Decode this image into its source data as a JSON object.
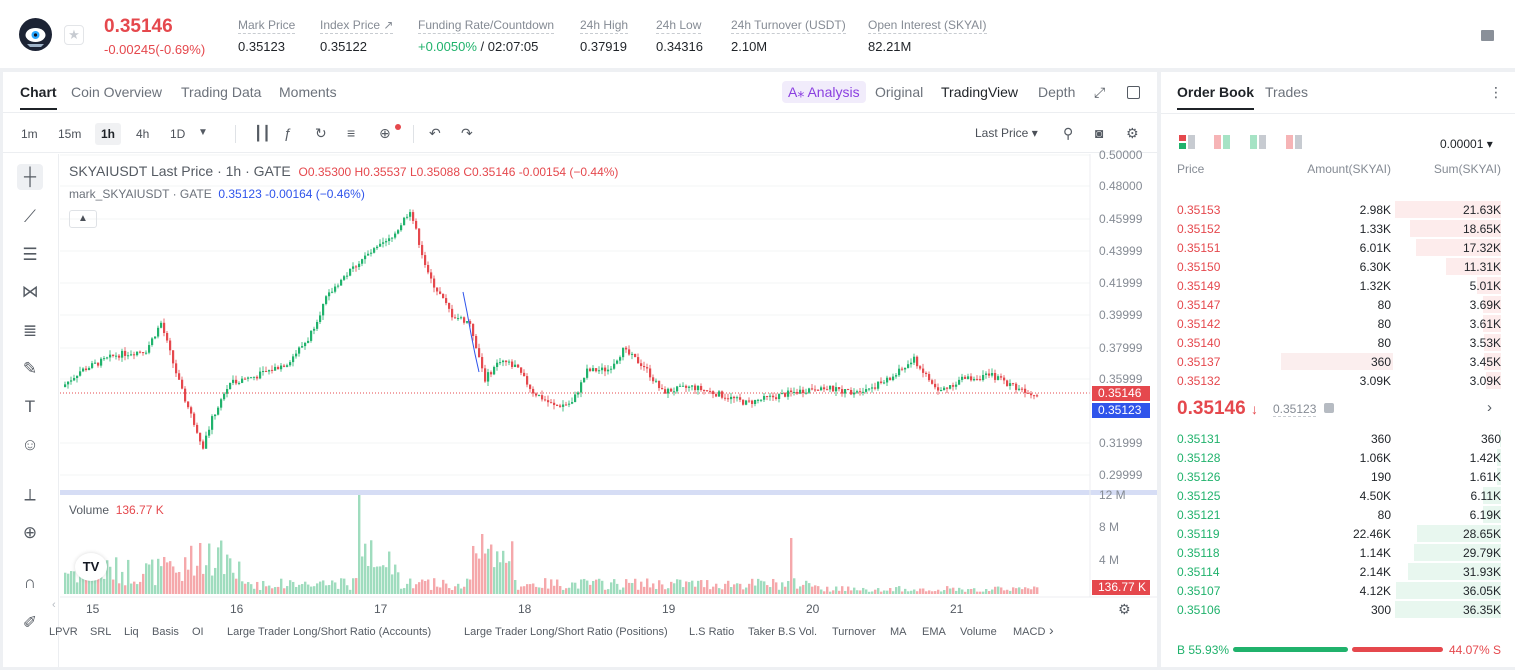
{
  "header": {
    "price": "0.35146",
    "change": "-0.00245(-0.69%)",
    "stats": [
      {
        "label": "Mark Price",
        "value": "0.35123"
      },
      {
        "label": "Index Price ↗",
        "value": "0.35122"
      },
      {
        "label": "Funding Rate/Countdown",
        "rate": "+0.0050%",
        "countdown": "/ 02:07:05"
      },
      {
        "label": "24h High",
        "value": "0.37919"
      },
      {
        "label": "24h Low",
        "value": "0.34316"
      },
      {
        "label": "24h Turnover (USDT)",
        "value": "2.10M"
      },
      {
        "label": "Open Interest (SKYAI)",
        "value": "82.21M"
      }
    ]
  },
  "tabs": [
    "Chart",
    "Coin Overview",
    "Trading Data",
    "Moments"
  ],
  "views": {
    "ai": "A⁎ Analysis",
    "original": "Original",
    "tradingview": "TradingView",
    "depth": "Depth"
  },
  "intervals": [
    "1m",
    "15m",
    "1h",
    "4h",
    "1D"
  ],
  "toolbar": {
    "last_price": "Last Price"
  },
  "legend": {
    "title": "SKYAIUSDT Last Price · 1h · GATE",
    "ohlc": "O0.35300  H0.35537  L0.35088  C0.35146  -0.00154  (−0.44%)",
    "mark": "mark_SKYAIUSDT · GATE",
    "mark_vals": "0.35123  -0.00164  (−0.46%)",
    "volume": "Volume",
    "volume_val": "136.77 K"
  },
  "y_axis": [
    "0.50000",
    "0.48000",
    "0.45999",
    "0.43999",
    "0.41999",
    "0.39999",
    "0.37999",
    "0.35999",
    "0.31999",
    "0.29999"
  ],
  "y_tags": {
    "last": "0.35146",
    "mark": "0.35123",
    "vol": "136.77 K"
  },
  "vol_axis": [
    "12 M",
    "8 M",
    "4 M"
  ],
  "x_axis": [
    "15",
    "16",
    "17",
    "18",
    "19",
    "20",
    "21"
  ],
  "indicators": [
    "LPVR",
    "SRL",
    "Liq",
    "Basis",
    "OI",
    "Large Trader Long/Short Ratio (Accounts)",
    "Large Trader Long/Short Ratio (Positions)",
    "L.S Ratio",
    "Taker B.S Vol.",
    "Turnover",
    "MA",
    "EMA",
    "Volume",
    "MACD"
  ],
  "orderbook": {
    "tabs": [
      "Order Book",
      "Trades"
    ],
    "precision": "0.00001",
    "headers": [
      "Price",
      "Amount(SKYAI)",
      "Sum(SKYAI)"
    ],
    "asks": [
      {
        "p": "0.35153",
        "a": "2.98K",
        "s": "21.63K",
        "d": 1.0
      },
      {
        "p": "0.35152",
        "a": "1.33K",
        "s": "18.65K",
        "d": 0.86
      },
      {
        "p": "0.35151",
        "a": "6.01K",
        "s": "17.32K",
        "d": 0.8
      },
      {
        "p": "0.35150",
        "a": "6.30K",
        "s": "11.31K",
        "d": 0.52
      },
      {
        "p": "0.35149",
        "a": "1.32K",
        "s": "5.01K",
        "d": 0.23
      },
      {
        "p": "0.35147",
        "a": "80",
        "s": "3.69K",
        "d": 0.17
      },
      {
        "p": "0.35142",
        "a": "80",
        "s": "3.61K",
        "d": 0.17
      },
      {
        "p": "0.35140",
        "a": "80",
        "s": "3.53K",
        "d": 0.16
      },
      {
        "p": "0.35137",
        "a": "360",
        "s": "3.45K",
        "d": 0.16
      },
      {
        "p": "0.35132",
        "a": "3.09K",
        "s": "3.09K",
        "d": 0.14
      }
    ],
    "mid": {
      "price": "0.35146",
      "arrow": "↓",
      "mark": "0.35123"
    },
    "bids": [
      {
        "p": "0.35131",
        "a": "360",
        "s": "360",
        "d": 0.01
      },
      {
        "p": "0.35128",
        "a": "1.06K",
        "s": "1.42K",
        "d": 0.04
      },
      {
        "p": "0.35126",
        "a": "190",
        "s": "1.61K",
        "d": 0.04
      },
      {
        "p": "0.35125",
        "a": "4.50K",
        "s": "6.11K",
        "d": 0.17
      },
      {
        "p": "0.35121",
        "a": "80",
        "s": "6.19K",
        "d": 0.17
      },
      {
        "p": "0.35119",
        "a": "22.46K",
        "s": "28.65K",
        "d": 0.79
      },
      {
        "p": "0.35118",
        "a": "1.14K",
        "s": "29.79K",
        "d": 0.82
      },
      {
        "p": "0.35114",
        "a": "2.14K",
        "s": "31.93K",
        "d": 0.88
      },
      {
        "p": "0.35107",
        "a": "4.12K",
        "s": "36.05K",
        "d": 0.99
      },
      {
        "p": "0.35106",
        "a": "300",
        "s": "36.35K",
        "d": 1.0
      }
    ],
    "buy_ratio": "B 55.93%",
    "sell_ratio": "44.07% S",
    "buy_fraction": 0.5593
  },
  "colors": {
    "up": "#20b26c",
    "down": "#e5484d",
    "mark": "#2f54eb"
  }
}
